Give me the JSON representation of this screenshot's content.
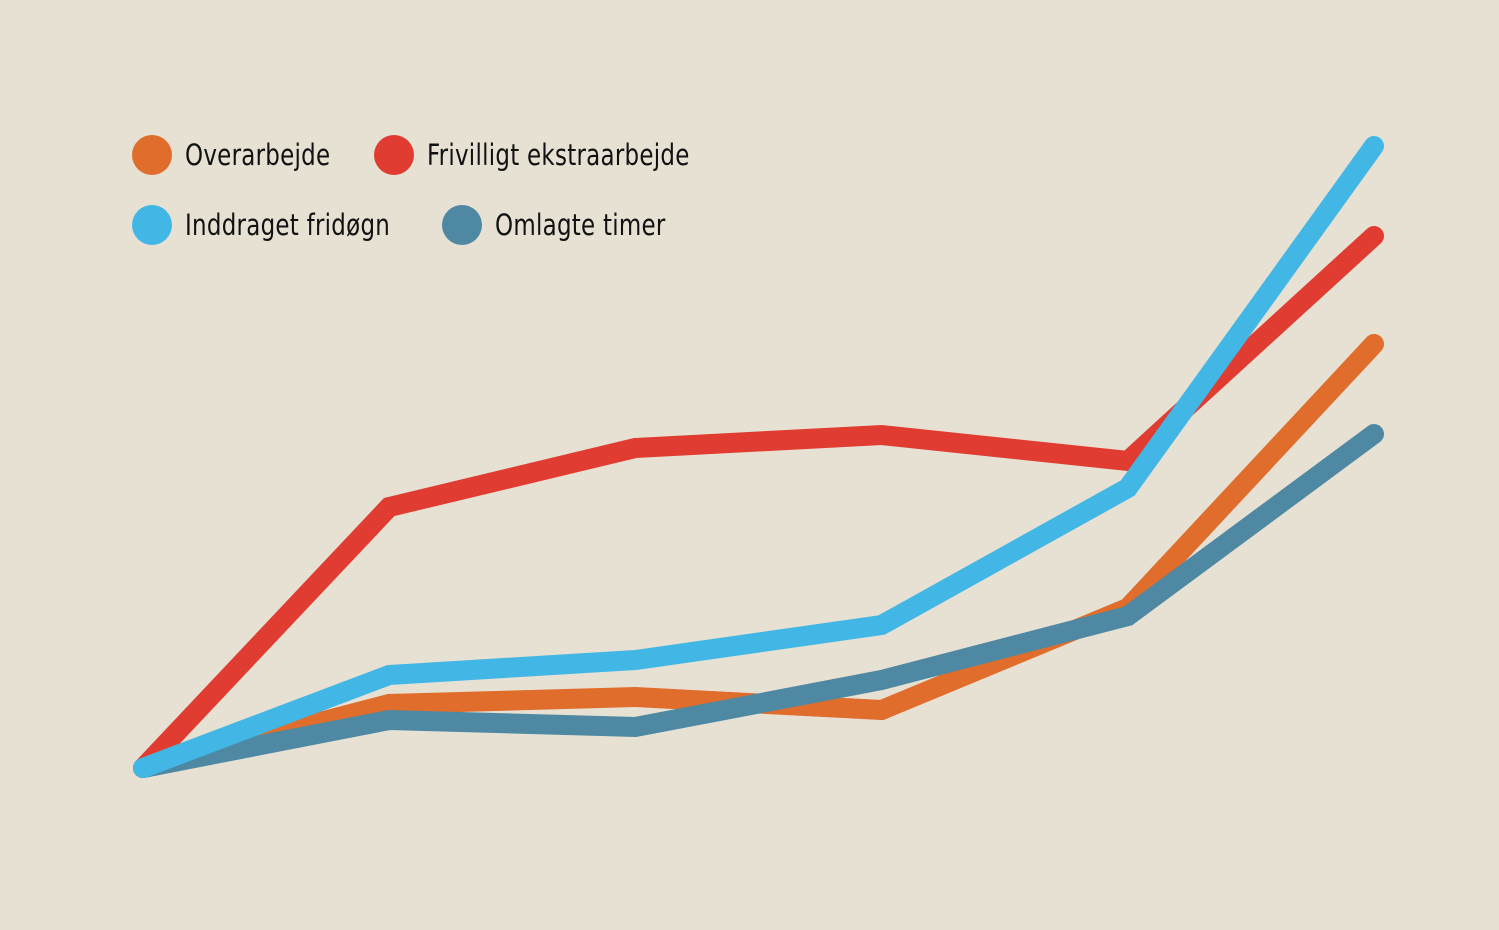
{
  "chart_data": {
    "type": "line",
    "title": "",
    "xlabel": "",
    "ylabel": "",
    "x": [
      1,
      2,
      3,
      4,
      5,
      6
    ],
    "ylim": [
      0,
      66
    ],
    "grid": false,
    "legend_position": "top-left",
    "line_cap": "round",
    "series": [
      {
        "name": "Frivilligt ekstraarbejde",
        "color": "#e03c31",
        "values": [
          0,
          26.1,
          32.0,
          33.3,
          30.7,
          53.2
        ]
      },
      {
        "name": "Overarbejde",
        "color": "#e06d2c",
        "values": [
          0,
          6.4,
          7.1,
          5.8,
          16.0,
          42.4
        ]
      },
      {
        "name": "Omlagte timer",
        "color": "#4e88a2",
        "values": [
          0,
          4.8,
          4.1,
          8.8,
          15.2,
          33.4
        ]
      },
      {
        "name": "Inddraget fridøgn",
        "color": "#42b7e6",
        "values": [
          0,
          9.3,
          10.8,
          14.3,
          28.0,
          62.2
        ]
      }
    ],
    "legend": [
      [
        {
          "name": "Overarbejde",
          "color": "#e06d2c"
        },
        {
          "name": "Frivilligt ekstraarbejde",
          "color": "#e03c31"
        }
      ],
      [
        {
          "name": "Inddraget fridøgn",
          "color": "#42b7e6"
        },
        {
          "name": "Omlagte timer",
          "color": "#4e88a2"
        }
      ]
    ]
  },
  "colors": {
    "background": "#e7e1d4",
    "text": "#111111"
  }
}
